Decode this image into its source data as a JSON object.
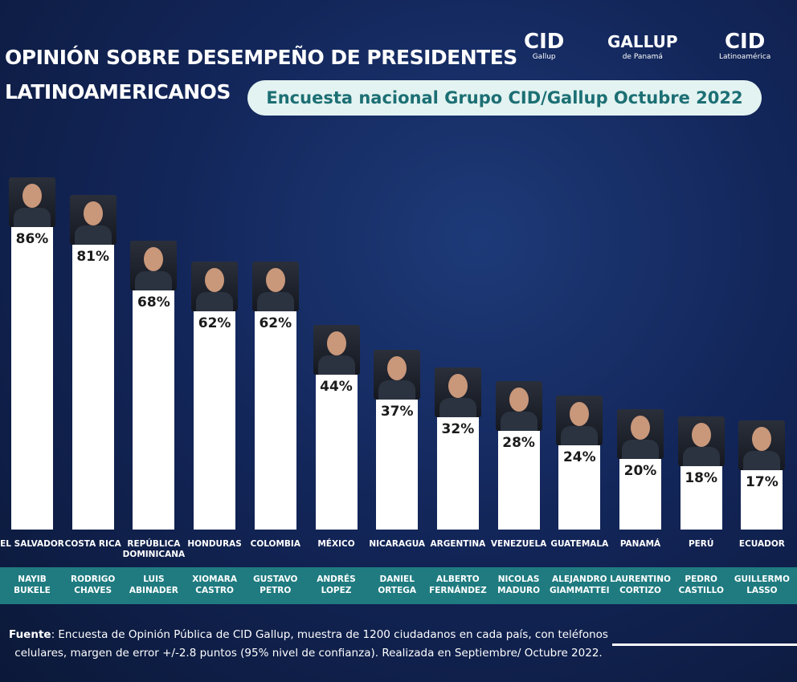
{
  "title": "OPINIÓN SOBRE DESEMPEÑO DE PRESIDENTES LATINOAMERICANOS",
  "subtitle": "Encuesta nacional Grupo CID/Gallup Octubre 2022",
  "logos": {
    "cid_gallup": {
      "main": "CID",
      "sub": "Gallup"
    },
    "gallup_panama": {
      "main": "GALLUP",
      "sub": "de Panamá"
    },
    "cid_latam": {
      "main": "CID",
      "sub": "Latinoamérica"
    }
  },
  "chart_data": {
    "type": "bar",
    "color": "#ffffff",
    "categories": [
      "EL SALVADOR",
      "COSTA RICA",
      "REPÚBLICA DOMINICANA",
      "HONDURAS",
      "COLOMBIA",
      "MÉXICO",
      "NICARAGUA",
      "ARGENTINA",
      "VENEZUELA",
      "GUATEMALA",
      "PANAMÁ",
      "PERÚ",
      "ECUADOR"
    ],
    "names": [
      "NAYIB BUKELE",
      "RODRIGO CHAVES",
      "LUIS ABINADER",
      "XIOMARA CASTRO",
      "GUSTAVO PETRO",
      "ANDRÉS LOPEZ",
      "DANIEL ORTEGA",
      "ALBERTO FERNÁNDEZ",
      "NICOLAS MADURO",
      "ALEJANDRO GIAMMATTEI",
      "LAURENTINO CORTIZO",
      "PEDRO CASTILLO",
      "GUILLERMO LASSO"
    ],
    "values": [
      86,
      81,
      68,
      62,
      62,
      44,
      37,
      32,
      28,
      24,
      20,
      18,
      17
    ],
    "value_labels": [
      "86%",
      "81%",
      "68%",
      "62%",
      "62%",
      "44%",
      "37%",
      "32%",
      "28%",
      "24%",
      "20%",
      "18%",
      "17%"
    ]
  },
  "source": {
    "label": "Fuente",
    "text": ": Encuesta de Opinión Pública de CID Gallup, muestra de 1200 ciudadanos en cada país, con teléfonos celulares, margen de error +/-2.8 puntos (95% nivel de confianza).  Realizada en Septiembre/ Octubre 2022."
  }
}
